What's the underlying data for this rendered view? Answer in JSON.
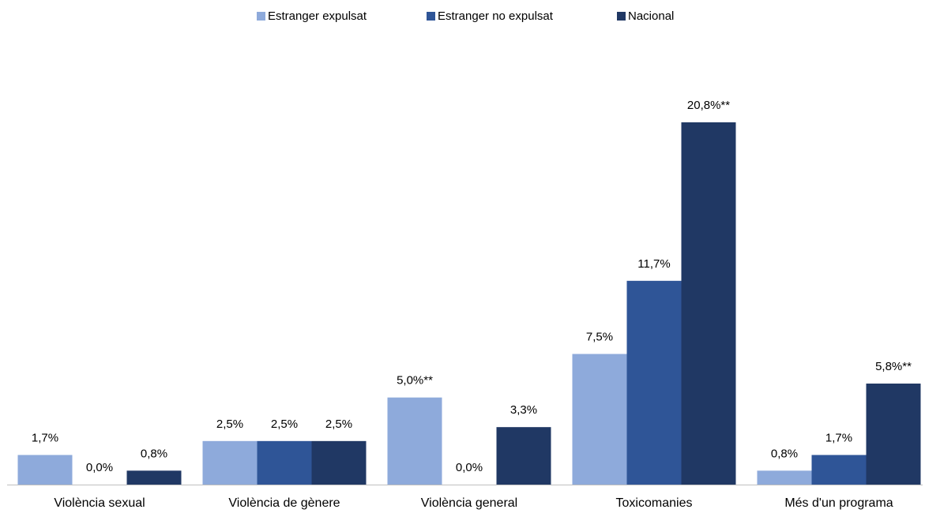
{
  "chart_data": {
    "type": "bar",
    "categories": [
      "Violència sexual",
      "Violència de gènere",
      "Violència general",
      "Toxicomanies",
      "Més d'un programa"
    ],
    "series": [
      {
        "name": "Estranger expulsat",
        "color": "#8eaadb",
        "values": [
          1.7,
          2.5,
          5.0,
          7.5,
          0.8
        ],
        "value_labels": [
          "1,7%",
          "2,5%",
          "5,0%**",
          "7,5%",
          "0,8%"
        ]
      },
      {
        "name": "Estranger no expulsat",
        "color": "#2f5597",
        "values": [
          0.0,
          2.5,
          0.0,
          11.7,
          1.7
        ],
        "value_labels": [
          "0,0%",
          "2,5%",
          "0,0%",
          "11,7%",
          "1,7%"
        ]
      },
      {
        "name": "Nacional",
        "color": "#203864",
        "values": [
          0.8,
          2.5,
          3.3,
          20.8,
          5.8
        ],
        "value_labels": [
          "0,8%",
          "2,5%",
          "3,3%",
          "20,8%**",
          "5,8%**"
        ]
      }
    ],
    "legend": "top"
  }
}
